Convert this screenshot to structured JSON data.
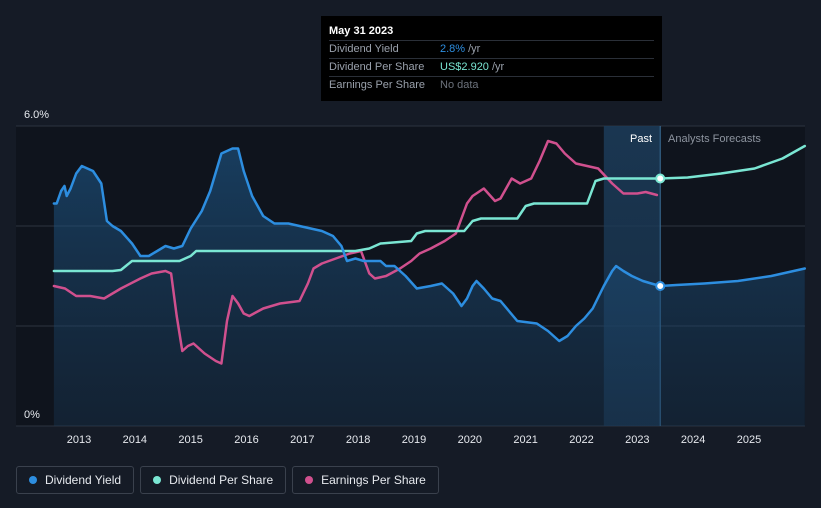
{
  "tooltip": {
    "date": "May 31 2023",
    "rows": [
      {
        "label": "Dividend Yield",
        "value": "2.8%",
        "unit": "/yr"
      },
      {
        "label": "Dividend Per Share",
        "value": "US$2.920",
        "unit": "/yr"
      },
      {
        "label": "Earnings Per Share",
        "value": "No data",
        "unit": ""
      }
    ]
  },
  "regions": {
    "past_label": "Past",
    "forecast_label": "Analysts Forecasts"
  },
  "legend": [
    {
      "label": "Dividend Yield",
      "color": "#2d8ee0"
    },
    {
      "label": "Dividend Per Share",
      "color": "#7ae6d3"
    },
    {
      "label": "Earnings Per Share",
      "color": "#d0508e"
    }
  ],
  "chart_data": {
    "type": "line",
    "y_axis": {
      "ticks": [
        "6.0%",
        "0%"
      ],
      "ylim": [
        0,
        6.0
      ],
      "unit": "%"
    },
    "x_axis": {
      "ticks": [
        "2013",
        "2014",
        "2015",
        "2016",
        "2017",
        "2018",
        "2019",
        "2020",
        "2021",
        "2022",
        "2023",
        "2024",
        "2025"
      ],
      "xlim": [
        2012.5,
        2026.0
      ]
    },
    "forecast_start": 2022.4,
    "highlight_x": 2023.41,
    "grid": true,
    "legend_position": "bottom-left",
    "series": [
      {
        "name": "Dividend Yield",
        "color": "#2d8ee0",
        "fill": true,
        "points": [
          [
            2012.55,
            4.45
          ],
          [
            2012.6,
            4.45
          ],
          [
            2012.68,
            4.7
          ],
          [
            2012.74,
            4.8
          ],
          [
            2012.78,
            4.6
          ],
          [
            2012.85,
            4.75
          ],
          [
            2012.95,
            5.05
          ],
          [
            2013.05,
            5.2
          ],
          [
            2013.15,
            5.15
          ],
          [
            2013.25,
            5.1
          ],
          [
            2013.4,
            4.85
          ],
          [
            2013.5,
            4.1
          ],
          [
            2013.6,
            4.0
          ],
          [
            2013.75,
            3.9
          ],
          [
            2013.95,
            3.65
          ],
          [
            2014.1,
            3.4
          ],
          [
            2014.25,
            3.4
          ],
          [
            2014.4,
            3.5
          ],
          [
            2014.55,
            3.6
          ],
          [
            2014.7,
            3.55
          ],
          [
            2014.85,
            3.6
          ],
          [
            2015.0,
            3.95
          ],
          [
            2015.2,
            4.3
          ],
          [
            2015.35,
            4.7
          ],
          [
            2015.55,
            5.45
          ],
          [
            2015.75,
            5.55
          ],
          [
            2015.85,
            5.55
          ],
          [
            2015.95,
            5.1
          ],
          [
            2016.1,
            4.6
          ],
          [
            2016.3,
            4.2
          ],
          [
            2016.5,
            4.05
          ],
          [
            2016.75,
            4.05
          ],
          [
            2016.95,
            4.0
          ],
          [
            2017.15,
            3.95
          ],
          [
            2017.35,
            3.9
          ],
          [
            2017.55,
            3.8
          ],
          [
            2017.7,
            3.6
          ],
          [
            2017.8,
            3.3
          ],
          [
            2017.95,
            3.35
          ],
          [
            2018.1,
            3.3
          ],
          [
            2018.25,
            3.3
          ],
          [
            2018.4,
            3.3
          ],
          [
            2018.5,
            3.2
          ],
          [
            2018.65,
            3.2
          ],
          [
            2018.85,
            3.0
          ],
          [
            2019.05,
            2.75
          ],
          [
            2019.3,
            2.8
          ],
          [
            2019.5,
            2.85
          ],
          [
            2019.7,
            2.65
          ],
          [
            2019.85,
            2.4
          ],
          [
            2019.95,
            2.55
          ],
          [
            2020.05,
            2.8
          ],
          [
            2020.12,
            2.9
          ],
          [
            2020.25,
            2.75
          ],
          [
            2020.4,
            2.55
          ],
          [
            2020.55,
            2.5
          ],
          [
            2020.7,
            2.3
          ],
          [
            2020.85,
            2.1
          ],
          [
            2021.2,
            2.05
          ],
          [
            2021.4,
            1.9
          ],
          [
            2021.6,
            1.7
          ],
          [
            2021.75,
            1.8
          ],
          [
            2021.9,
            2.0
          ],
          [
            2022.05,
            2.15
          ],
          [
            2022.2,
            2.35
          ],
          [
            2022.4,
            2.8
          ],
          [
            2022.55,
            3.1
          ],
          [
            2022.62,
            3.2
          ],
          [
            2022.75,
            3.1
          ],
          [
            2022.9,
            3.0
          ],
          [
            2023.1,
            2.9
          ],
          [
            2023.25,
            2.85
          ],
          [
            2023.41,
            2.8
          ],
          [
            2023.7,
            2.82
          ],
          [
            2024.2,
            2.85
          ],
          [
            2024.8,
            2.9
          ],
          [
            2025.4,
            3.0
          ],
          [
            2026.0,
            3.15
          ]
        ]
      },
      {
        "name": "Dividend Per Share",
        "color": "#7ae6d3",
        "points": [
          [
            2012.55,
            3.1
          ],
          [
            2013.6,
            3.1
          ],
          [
            2013.75,
            3.12
          ],
          [
            2013.95,
            3.3
          ],
          [
            2014.1,
            3.3
          ],
          [
            2014.8,
            3.3
          ],
          [
            2015.0,
            3.4
          ],
          [
            2015.1,
            3.5
          ],
          [
            2016.0,
            3.5
          ],
          [
            2017.95,
            3.5
          ],
          [
            2018.2,
            3.55
          ],
          [
            2018.4,
            3.65
          ],
          [
            2018.95,
            3.7
          ],
          [
            2019.05,
            3.85
          ],
          [
            2019.2,
            3.9
          ],
          [
            2019.9,
            3.9
          ],
          [
            2020.05,
            4.1
          ],
          [
            2020.2,
            4.15
          ],
          [
            2020.85,
            4.15
          ],
          [
            2021.0,
            4.4
          ],
          [
            2021.15,
            4.45
          ],
          [
            2022.1,
            4.45
          ],
          [
            2022.25,
            4.9
          ],
          [
            2022.4,
            4.95
          ],
          [
            2023.41,
            4.95
          ],
          [
            2023.9,
            4.97
          ],
          [
            2024.5,
            5.05
          ],
          [
            2025.1,
            5.15
          ],
          [
            2025.6,
            5.35
          ],
          [
            2026.0,
            5.6
          ]
        ]
      },
      {
        "name": "Earnings Per Share",
        "color": "#d0508e",
        "points": [
          [
            2012.55,
            2.8
          ],
          [
            2012.75,
            2.75
          ],
          [
            2012.95,
            2.6
          ],
          [
            2013.2,
            2.6
          ],
          [
            2013.45,
            2.55
          ],
          [
            2013.75,
            2.75
          ],
          [
            2014.1,
            2.95
          ],
          [
            2014.3,
            3.05
          ],
          [
            2014.55,
            3.1
          ],
          [
            2014.65,
            3.05
          ],
          [
            2014.75,
            2.2
          ],
          [
            2014.85,
            1.5
          ],
          [
            2014.95,
            1.6
          ],
          [
            2015.05,
            1.65
          ],
          [
            2015.25,
            1.45
          ],
          [
            2015.45,
            1.3
          ],
          [
            2015.55,
            1.25
          ],
          [
            2015.65,
            2.1
          ],
          [
            2015.75,
            2.6
          ],
          [
            2015.85,
            2.45
          ],
          [
            2015.95,
            2.25
          ],
          [
            2016.05,
            2.2
          ],
          [
            2016.3,
            2.35
          ],
          [
            2016.6,
            2.45
          ],
          [
            2016.95,
            2.5
          ],
          [
            2017.1,
            2.85
          ],
          [
            2017.2,
            3.15
          ],
          [
            2017.35,
            3.25
          ],
          [
            2017.6,
            3.35
          ],
          [
            2017.85,
            3.45
          ],
          [
            2018.05,
            3.5
          ],
          [
            2018.2,
            3.05
          ],
          [
            2018.3,
            2.95
          ],
          [
            2018.5,
            3.0
          ],
          [
            2018.75,
            3.15
          ],
          [
            2018.95,
            3.3
          ],
          [
            2019.1,
            3.45
          ],
          [
            2019.3,
            3.55
          ],
          [
            2019.55,
            3.7
          ],
          [
            2019.75,
            3.85
          ],
          [
            2019.95,
            4.45
          ],
          [
            2020.05,
            4.6
          ],
          [
            2020.25,
            4.75
          ],
          [
            2020.45,
            4.5
          ],
          [
            2020.55,
            4.55
          ],
          [
            2020.75,
            4.95
          ],
          [
            2020.9,
            4.85
          ],
          [
            2021.1,
            4.95
          ],
          [
            2021.25,
            5.3
          ],
          [
            2021.4,
            5.7
          ],
          [
            2021.55,
            5.65
          ],
          [
            2021.7,
            5.45
          ],
          [
            2021.9,
            5.25
          ],
          [
            2022.1,
            5.2
          ],
          [
            2022.3,
            5.15
          ],
          [
            2022.55,
            4.85
          ],
          [
            2022.75,
            4.65
          ],
          [
            2023.0,
            4.65
          ],
          [
            2023.15,
            4.68
          ],
          [
            2023.35,
            4.62
          ]
        ]
      }
    ]
  }
}
